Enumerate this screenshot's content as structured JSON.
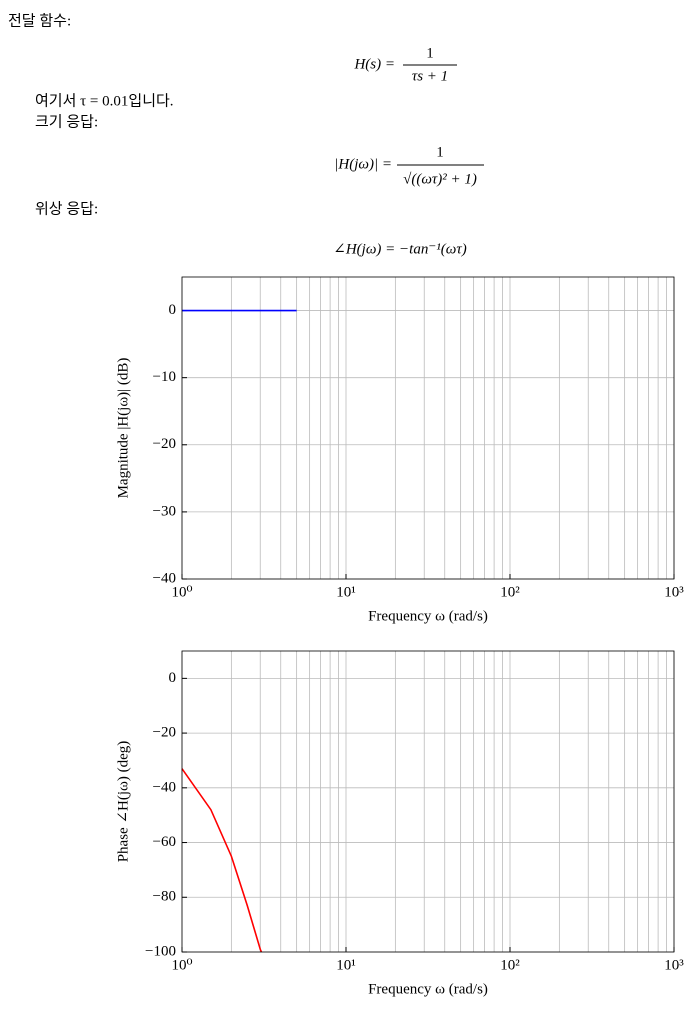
{
  "document": {
    "heading": "전달 함수:",
    "formula1": {
      "lhs": "H(s) =",
      "numerator": "1",
      "denominator": "τs + 1"
    },
    "where": "여기서 τ = 0.01입니다.",
    "magnitude_heading": "크기 응답:",
    "formula2": {
      "lhs": "|H(jω)| =",
      "numerator": "1",
      "denominator": "√((ωτ)² + 1)"
    },
    "phase_heading": "위상 응답:",
    "formula3": "∠H(jω) = −tan⁻¹(ωτ)"
  },
  "chart_data": [
    {
      "type": "line",
      "xlabel": "Frequency ω (rad/s)",
      "ylabel": "Magnitude |H(jω)| (dB)",
      "xscale": "log",
      "grid": true,
      "color": "#0000ff",
      "x": [
        1,
        2,
        3,
        4,
        5
      ],
      "values": [
        0,
        0,
        0,
        0,
        0
      ],
      "xlim": [
        1,
        1000
      ],
      "xticks": [
        {
          "value": 1,
          "label": "10⁰"
        },
        {
          "value": 10,
          "label": "10¹"
        },
        {
          "value": 100,
          "label": "10²"
        },
        {
          "value": 1000,
          "label": "10³"
        }
      ],
      "xminor": [
        2,
        3,
        4,
        5,
        6,
        7,
        8,
        9,
        20,
        30,
        40,
        50,
        60,
        70,
        80,
        90,
        200,
        300,
        400,
        500,
        600,
        700,
        800,
        900
      ],
      "ylim": [
        -40,
        5
      ],
      "yticks": [
        0,
        {
          "value": -10,
          "label": "−10"
        },
        {
          "value": -20,
          "label": "−20"
        },
        {
          "value": -30,
          "label": "−30"
        },
        {
          "value": -40,
          "label": "−40"
        }
      ]
    },
    {
      "type": "line",
      "xlabel": "Frequency ω (rad/s)",
      "ylabel": "Phase ∠H(jω) (deg)",
      "xscale": "log",
      "grid": true,
      "color": "#ff0000",
      "x": [
        1,
        1.5,
        2,
        2.5,
        3,
        3.05
      ],
      "values": [
        -33,
        -48,
        -65,
        -83,
        -99,
        -100
      ],
      "xlim": [
        1,
        1000
      ],
      "xticks": [
        {
          "value": 1,
          "label": "10⁰"
        },
        {
          "value": 10,
          "label": "10¹"
        },
        {
          "value": 100,
          "label": "10²"
        },
        {
          "value": 1000,
          "label": "10³"
        }
      ],
      "xminor": [
        2,
        3,
        4,
        5,
        6,
        7,
        8,
        9,
        20,
        30,
        40,
        50,
        60,
        70,
        80,
        90,
        200,
        300,
        400,
        500,
        600,
        700,
        800,
        900
      ],
      "ylim": [
        -100,
        10
      ],
      "yticks": [
        0,
        {
          "value": -20,
          "label": "−20"
        },
        {
          "value": -40,
          "label": "−40"
        },
        {
          "value": -60,
          "label": "−60"
        },
        {
          "value": -80,
          "label": "−80"
        },
        {
          "value": -100,
          "label": "−100"
        }
      ]
    }
  ]
}
